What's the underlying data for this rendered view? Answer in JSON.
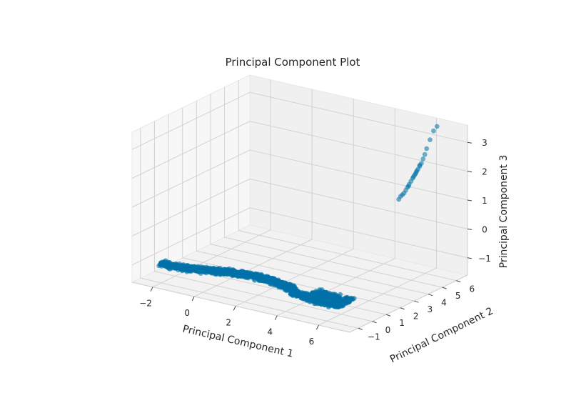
{
  "chart_data": {
    "type": "scatter3d",
    "title": "Principal Component Plot",
    "xlabel": "Principal Component 1",
    "ylabel": "Principal Component 2",
    "zlabel": "Principal Component 3",
    "xlim": [
      -3,
      7.5
    ],
    "ylim": [
      -1.6,
      6.8
    ],
    "zlim": [
      -1.6,
      3.6
    ],
    "xticks": [
      -2,
      0,
      2,
      4,
      6
    ],
    "yticks": [
      -1,
      0,
      1,
      2,
      3,
      4,
      5,
      6
    ],
    "zticks": [
      -1,
      0,
      1,
      2,
      3
    ],
    "xtick_labels": [
      "−2",
      "0",
      "2",
      "4",
      "6"
    ],
    "ytick_labels": [
      "−1",
      "0",
      "1",
      "2",
      "3",
      "4",
      "5",
      "6"
    ],
    "ztick_labels": [
      "−1",
      "0",
      "1",
      "2",
      "3"
    ],
    "grid": true,
    "color": "#0072a8",
    "cluster_points": [
      {
        "x": 5.2,
        "y": 5.3,
        "z": 1.0
      },
      {
        "x": 5.3,
        "y": 5.4,
        "z": 1.15
      },
      {
        "x": 5.4,
        "y": 5.5,
        "z": 1.3
      },
      {
        "x": 5.45,
        "y": 5.55,
        "z": 1.4
      },
      {
        "x": 5.5,
        "y": 5.6,
        "z": 1.5
      },
      {
        "x": 5.55,
        "y": 5.65,
        "z": 1.6
      },
      {
        "x": 5.6,
        "y": 5.7,
        "z": 1.7
      },
      {
        "x": 5.65,
        "y": 5.75,
        "z": 1.8
      },
      {
        "x": 5.7,
        "y": 5.8,
        "z": 1.9
      },
      {
        "x": 5.75,
        "y": 5.85,
        "z": 2.0
      },
      {
        "x": 5.8,
        "y": 5.9,
        "z": 2.1
      },
      {
        "x": 5.85,
        "y": 5.95,
        "z": 2.2
      },
      {
        "x": 5.9,
        "y": 6.0,
        "z": 2.35
      },
      {
        "x": 5.95,
        "y": 6.05,
        "z": 2.5
      },
      {
        "x": 6.0,
        "y": 6.1,
        "z": 2.7
      },
      {
        "x": 6.1,
        "y": 6.2,
        "z": 3.0
      },
      {
        "x": 6.2,
        "y": 6.3,
        "z": 3.3
      },
      {
        "x": 6.3,
        "y": 6.4,
        "z": 3.45
      },
      {
        "x": 5.35,
        "y": 5.45,
        "z": 1.2
      },
      {
        "x": 5.5,
        "y": 5.55,
        "z": 1.45
      },
      {
        "x": 5.62,
        "y": 5.72,
        "z": 1.75
      },
      {
        "x": 5.72,
        "y": 5.82,
        "z": 1.95
      },
      {
        "x": 5.82,
        "y": 5.88,
        "z": 2.15
      },
      {
        "x": 5.25,
        "y": 5.35,
        "z": 1.1
      },
      {
        "x": 5.68,
        "y": 5.78,
        "z": 1.85
      }
    ],
    "main_band": {
      "description": "dense band of points from PC1≈-2.2 to PC1≈6.5 near PC3≈-1",
      "x_range": [
        -2.3,
        6.5
      ],
      "z_approx": -1.0
    }
  }
}
